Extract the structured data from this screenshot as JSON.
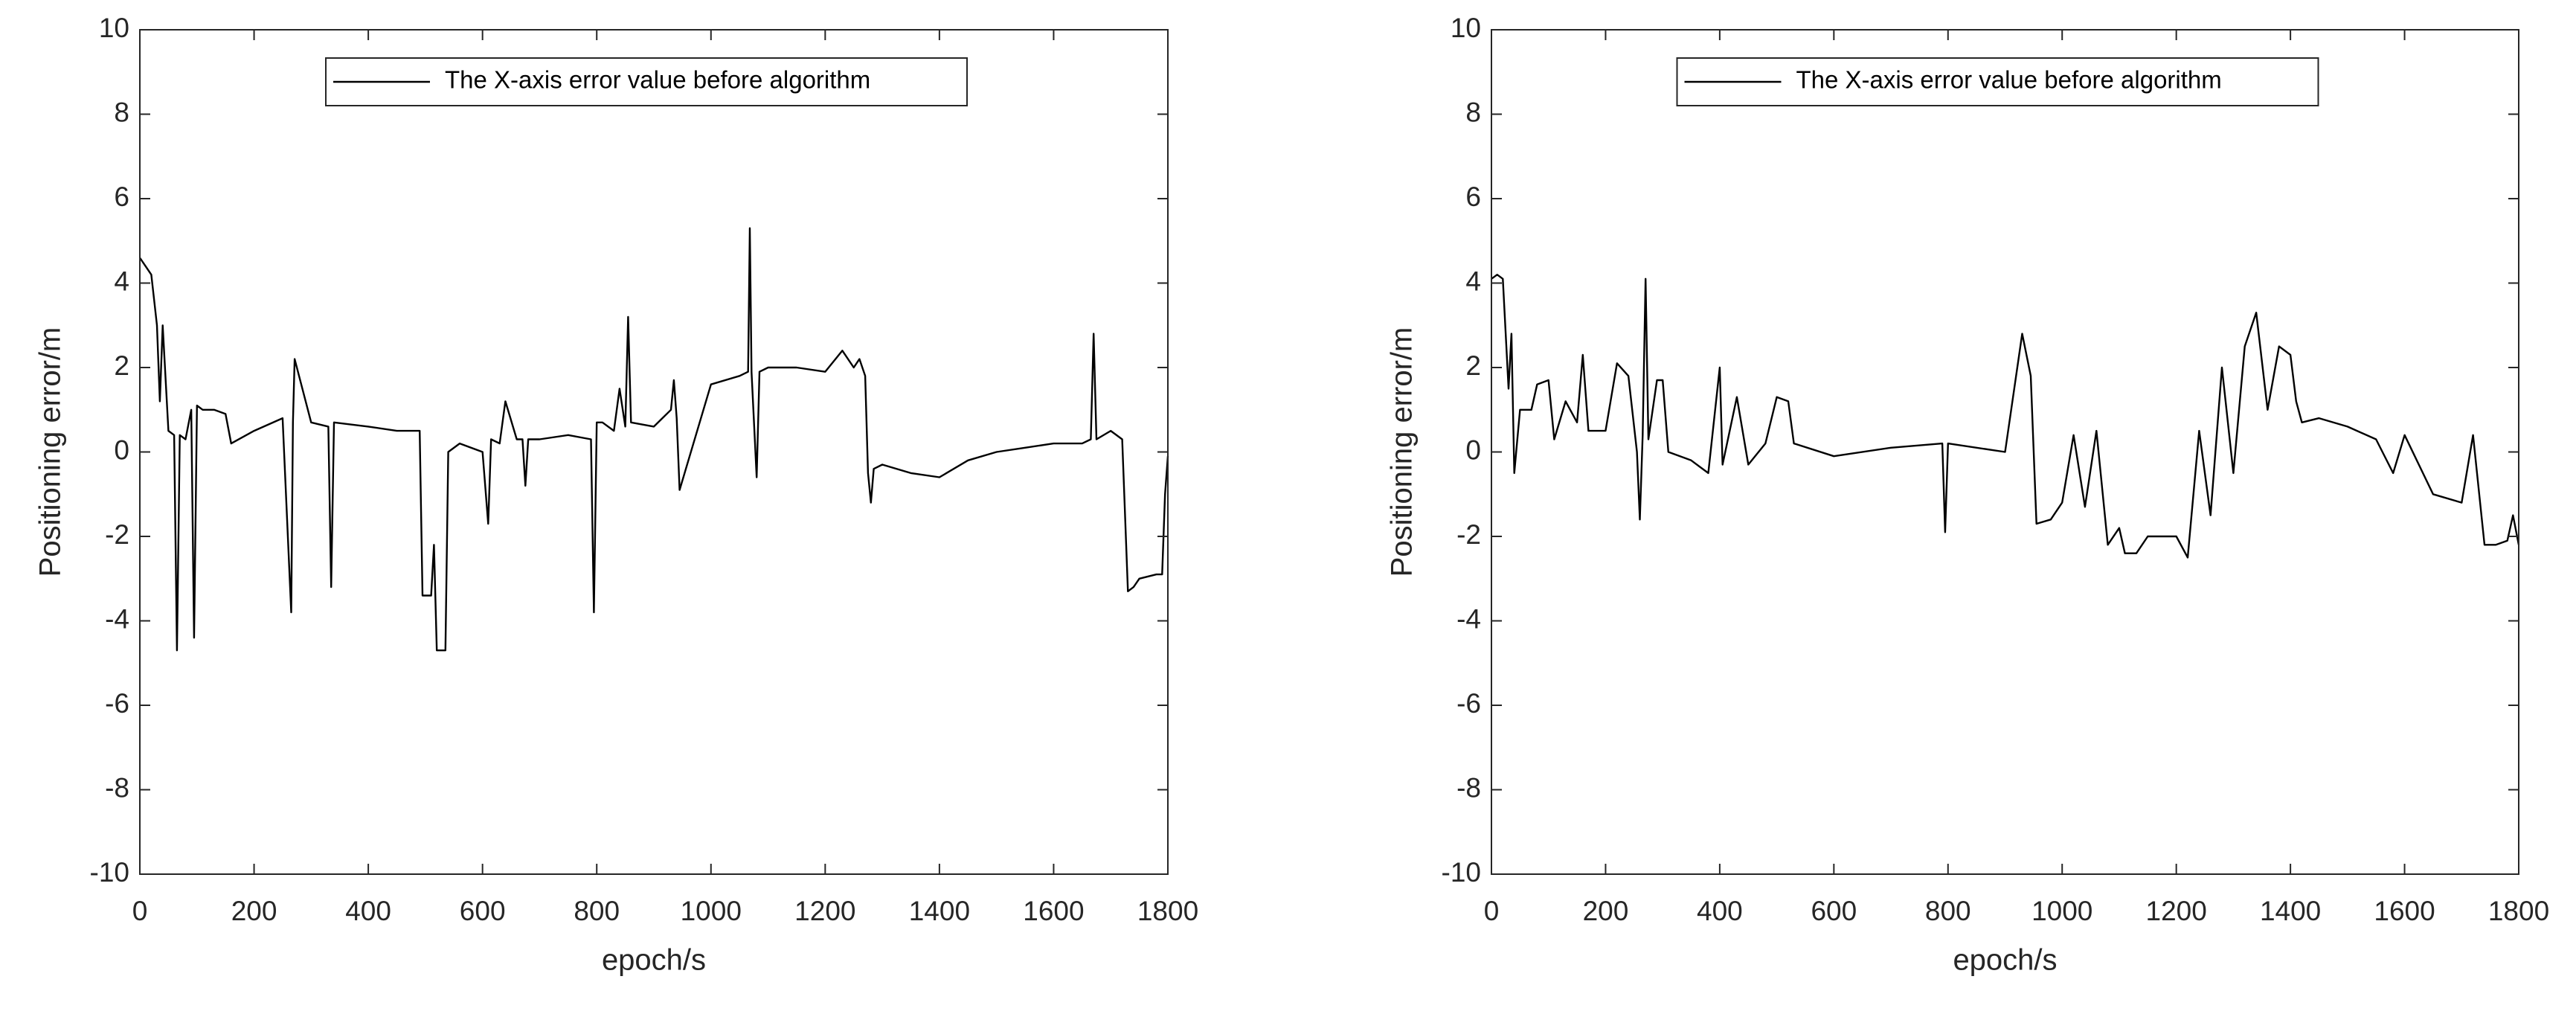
{
  "chart_data": [
    {
      "type": "line",
      "xlabel": "epoch/s",
      "ylabel": "Positioning error/m",
      "xlim": [
        0,
        1800
      ],
      "xticks": [
        0,
        200,
        400,
        600,
        800,
        1000,
        1200,
        1400,
        1600,
        1800
      ],
      "ylim": [
        -10,
        10
      ],
      "yticks": [
        -10,
        -8,
        -6,
        -4,
        -2,
        0,
        2,
        4,
        6,
        8,
        10
      ],
      "legend": "north",
      "grid": false,
      "x": [
        0,
        10,
        20,
        30,
        35,
        40,
        50,
        60,
        65,
        70,
        80,
        90,
        95,
        100,
        110,
        130,
        150,
        160,
        200,
        250,
        265,
        268,
        271,
        300,
        330,
        335,
        340,
        400,
        450,
        490,
        495,
        510,
        515,
        520,
        525,
        535,
        540,
        560,
        600,
        610,
        615,
        630,
        640,
        660,
        670,
        675,
        680,
        700,
        750,
        790,
        795,
        800,
        810,
        830,
        840,
        850,
        855,
        860,
        900,
        930,
        935,
        940,
        945,
        1000,
        1050,
        1065,
        1068,
        1071,
        1080,
        1085,
        1100,
        1150,
        1200,
        1230,
        1250,
        1260,
        1270,
        1275,
        1280,
        1285,
        1300,
        1350,
        1400,
        1450,
        1500,
        1550,
        1600,
        1650,
        1665,
        1670,
        1675,
        1700,
        1720,
        1730,
        1740,
        1750,
        1780,
        1790,
        1795,
        1800
      ],
      "series": [
        {
          "name": "The X-axis error value before algorithm",
          "color": "#000000",
          "values": [
            4.6,
            4.4,
            4.2,
            3.0,
            1.2,
            3.0,
            0.5,
            0.4,
            -4.7,
            0.4,
            0.3,
            1.0,
            -4.4,
            1.1,
            1.0,
            1.0,
            0.9,
            0.2,
            0.5,
            0.8,
            -3.8,
            0.7,
            2.2,
            0.7,
            0.6,
            -3.2,
            0.7,
            0.6,
            0.5,
            0.5,
            -3.4,
            -3.4,
            -2.2,
            -4.7,
            -4.7,
            -4.7,
            0.0,
            0.2,
            0.0,
            -1.7,
            0.3,
            0.2,
            1.2,
            0.3,
            0.3,
            -0.8,
            0.3,
            0.3,
            0.4,
            0.3,
            -3.8,
            0.7,
            0.7,
            0.5,
            1.5,
            0.6,
            3.2,
            0.7,
            0.6,
            1.0,
            1.7,
            0.8,
            -0.9,
            1.6,
            1.8,
            1.9,
            5.3,
            1.9,
            -0.6,
            1.9,
            2.0,
            2.0,
            1.9,
            2.4,
            2.0,
            2.2,
            1.8,
            -0.5,
            -1.2,
            -0.4,
            -0.3,
            -0.5,
            -0.6,
            -0.2,
            0.0,
            0.1,
            0.2,
            0.2,
            0.3,
            2.8,
            0.3,
            0.5,
            0.3,
            -3.3,
            -3.2,
            -3.0,
            -2.9,
            -2.9,
            -1.0,
            -0.1
          ]
        }
      ]
    },
    {
      "type": "line",
      "xlabel": "epoch/s",
      "ylabel": "Positioning error/m",
      "xlim": [
        0,
        1800
      ],
      "xticks": [
        0,
        200,
        400,
        600,
        800,
        1000,
        1200,
        1400,
        1600,
        1800
      ],
      "ylim": [
        -10,
        10
      ],
      "yticks": [
        -10,
        -8,
        -6,
        -4,
        -2,
        0,
        2,
        4,
        6,
        8,
        10
      ],
      "legend": "north",
      "grid": false,
      "x": [
        0,
        10,
        20,
        30,
        35,
        40,
        50,
        70,
        80,
        100,
        110,
        130,
        150,
        160,
        170,
        200,
        220,
        240,
        255,
        260,
        265,
        270,
        275,
        290,
        300,
        310,
        350,
        380,
        400,
        405,
        430,
        450,
        480,
        500,
        520,
        530,
        600,
        700,
        790,
        795,
        800,
        900,
        930,
        945,
        955,
        980,
        1000,
        1020,
        1040,
        1060,
        1080,
        1100,
        1110,
        1130,
        1150,
        1200,
        1220,
        1240,
        1260,
        1280,
        1300,
        1320,
        1340,
        1360,
        1380,
        1400,
        1410,
        1420,
        1450,
        1500,
        1550,
        1580,
        1600,
        1650,
        1700,
        1720,
        1740,
        1760,
        1780,
        1790,
        1800
      ],
      "series": [
        {
          "name": "The X-axis error value before algorithm",
          "color": "#000000",
          "values": [
            4.1,
            4.2,
            4.1,
            1.5,
            2.8,
            -0.5,
            1.0,
            1.0,
            1.6,
            1.7,
            0.3,
            1.2,
            0.7,
            2.3,
            0.5,
            0.5,
            2.1,
            1.8,
            0.0,
            -1.6,
            0.4,
            4.1,
            0.3,
            1.7,
            1.7,
            0.0,
            -0.2,
            -0.5,
            2.0,
            -0.3,
            1.3,
            -0.3,
            0.2,
            1.3,
            1.2,
            0.2,
            -0.1,
            0.1,
            0.2,
            -1.9,
            0.2,
            0.0,
            2.8,
            1.8,
            -1.7,
            -1.6,
            -1.2,
            0.4,
            -1.3,
            0.5,
            -2.2,
            -1.8,
            -2.4,
            -2.4,
            -2.0,
            -2.0,
            -2.5,
            0.5,
            -1.5,
            2.0,
            -0.5,
            2.5,
            3.3,
            1.0,
            2.5,
            2.3,
            1.2,
            0.7,
            0.8,
            0.6,
            0.3,
            -0.5,
            0.4,
            -1.0,
            -1.2,
            0.4,
            -2.2,
            -2.2,
            -2.1,
            -1.5,
            -2.2
          ]
        }
      ]
    }
  ]
}
